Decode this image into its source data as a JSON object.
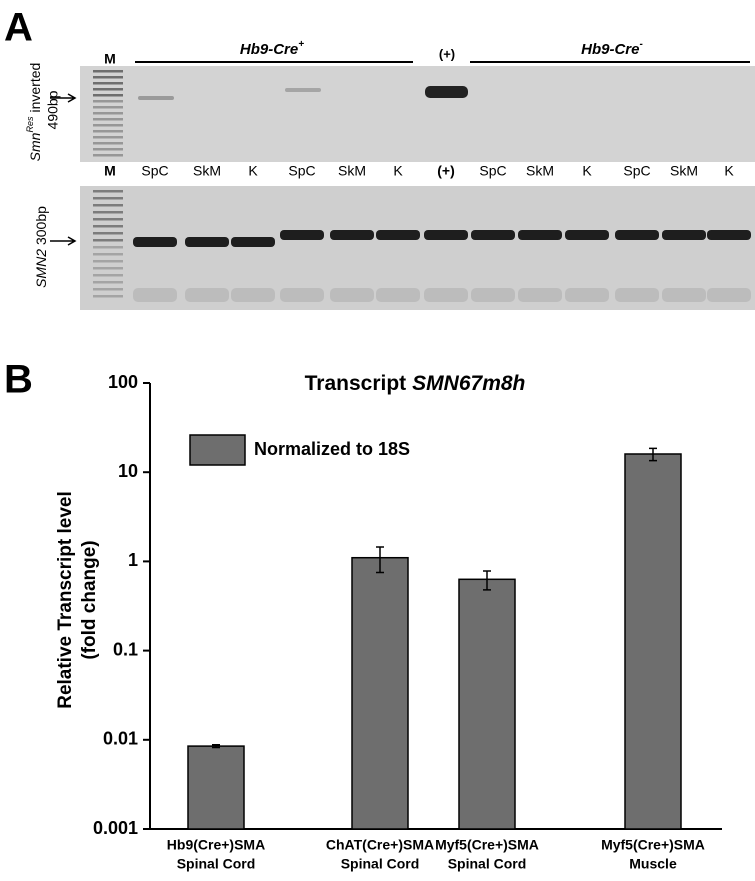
{
  "panel_a": {
    "label": "A",
    "top_labels": {
      "ladder": "M",
      "group_1": "Hb9-Cre",
      "group_1_sup": "+",
      "control": "(+)",
      "group_2": "Hb9-Cre",
      "group_2_sup": "-"
    },
    "lanes": [
      "M",
      "SpC",
      "SkM",
      "K",
      "SpC",
      "SkM",
      "K",
      "(+)",
      "SpC",
      "SkM",
      "K",
      "SpC",
      "SkM",
      "K"
    ],
    "gel_1_label": {
      "gene": "Smn",
      "sup": "Res",
      "rest": "inverted",
      "size": "490bp"
    },
    "gel_2_label": {
      "gene": "SMN2",
      "size": "300bp"
    }
  },
  "panel_b": {
    "label": "B"
  },
  "chart_data": {
    "type": "bar",
    "title": "Transcript",
    "title_gene": "SMN67m8h",
    "ylabel": [
      "Relative Transcript level",
      "(fold change)"
    ],
    "categories": [
      [
        "Hb9(Cre+)SMA",
        "Spinal Cord"
      ],
      [
        "ChAT(Cre+)SMA",
        "Spinal Cord"
      ],
      [
        "Myf5(Cre+)SMA",
        "Spinal Cord"
      ],
      [
        "Myf5(Cre+)SMA",
        "Muscle"
      ]
    ],
    "series": [
      {
        "name": "Normalized to 18S",
        "color": "#6e6e6e",
        "values": [
          0.0085,
          1.1,
          0.63,
          16
        ],
        "errors": [
          0.0003,
          0.35,
          0.15,
          2.5
        ]
      }
    ],
    "ylim": [
      0.001,
      100
    ],
    "yticks": [
      0.001,
      0.01,
      0.1,
      1,
      10,
      100
    ],
    "log_scale": true,
    "grid": false,
    "legend": "top-left"
  }
}
